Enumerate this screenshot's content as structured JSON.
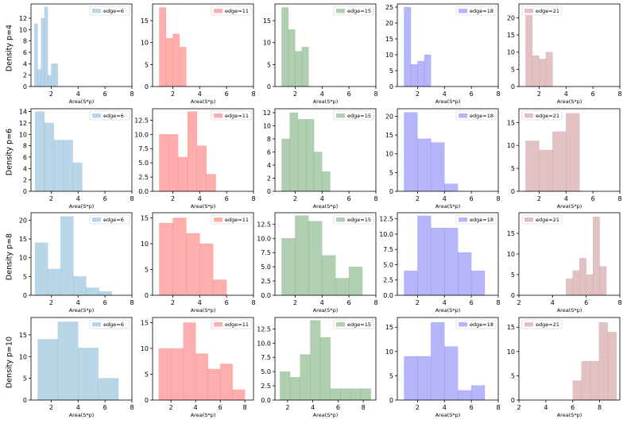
{
  "row_labels": [
    "Density p=4",
    "Density p=6",
    "Density p=8",
    "Density p=10"
  ],
  "column_titles": [
    "edge=6",
    "edge=11",
    "edge=15",
    "edge=18",
    "edge=21"
  ],
  "colors": [
    "#7fb2d6",
    "#ff6b6b",
    "#6fa86f",
    "#7878f5",
    "#c98e8e"
  ],
  "xlabel": "Area(S*p)",
  "chart_data": [
    {
      "type": "bar",
      "row": 0,
      "col": 0,
      "legend": "edge=6",
      "xlabel": "Area(S*p)",
      "xlim": [
        0.5,
        8
      ],
      "ylim": [
        0,
        14.5
      ],
      "xticks": [
        2,
        4,
        6,
        8
      ],
      "yticks": [
        0,
        2,
        4,
        6,
        8,
        10,
        12
      ],
      "ytick_labels": [
        "0",
        "2",
        "4",
        "6",
        "8",
        "10",
        "12"
      ],
      "bins": [
        [
          0.75,
          1.0,
          11
        ],
        [
          1.0,
          1.25,
          3
        ],
        [
          1.25,
          1.5,
          12
        ],
        [
          1.5,
          1.75,
          14
        ],
        [
          1.75,
          2.0,
          2
        ],
        [
          2.0,
          2.25,
          4
        ],
        [
          2.25,
          2.5,
          4
        ]
      ]
    },
    {
      "type": "bar",
      "row": 0,
      "col": 1,
      "legend": "edge=11",
      "xlabel": "Area(S*p)",
      "xlim": [
        0.5,
        8
      ],
      "ylim": [
        0,
        18.8
      ],
      "xticks": [
        2,
        4,
        6,
        8
      ],
      "yticks": [
        0,
        5,
        10,
        15
      ],
      "ytick_labels": [
        "0",
        "5",
        "10",
        "15"
      ],
      "bins": [
        [
          1.0,
          1.5,
          18
        ],
        [
          1.5,
          2.0,
          11
        ],
        [
          2.0,
          2.5,
          12
        ],
        [
          2.5,
          3.0,
          9
        ]
      ]
    },
    {
      "type": "bar",
      "row": 0,
      "col": 2,
      "legend": "edge=15",
      "xlabel": "Area(S*p)",
      "xlim": [
        0.5,
        8
      ],
      "ylim": [
        0,
        18.8
      ],
      "xticks": [
        2,
        4,
        6,
        8
      ],
      "yticks": [
        0,
        5,
        10,
        15
      ],
      "ytick_labels": [
        "0",
        "5",
        "10",
        "15"
      ],
      "bins": [
        [
          1.0,
          1.5,
          18
        ],
        [
          1.5,
          2.0,
          13
        ],
        [
          2.0,
          2.5,
          8
        ],
        [
          2.5,
          3.0,
          9
        ]
      ]
    },
    {
      "type": "bar",
      "row": 0,
      "col": 3,
      "legend": "edge=18",
      "xlabel": "Area(S*p)",
      "xlim": [
        0.5,
        8
      ],
      "ylim": [
        0,
        26
      ],
      "xticks": [
        2,
        4,
        6,
        8
      ],
      "yticks": [
        0,
        5,
        10,
        15,
        20,
        25
      ],
      "ytick_labels": [
        "0",
        "5",
        "10",
        "15",
        "20",
        "25"
      ],
      "bins": [
        [
          1.0,
          1.5,
          25
        ],
        [
          1.5,
          2.0,
          7
        ],
        [
          2.0,
          2.5,
          8
        ],
        [
          2.5,
          3.0,
          10
        ]
      ]
    },
    {
      "type": "bar",
      "row": 0,
      "col": 4,
      "legend": "edge=21",
      "xlabel": "Area(S*p)",
      "xlim": [
        0.5,
        8
      ],
      "ylim": [
        0,
        24
      ],
      "xticks": [
        2,
        4,
        6,
        8
      ],
      "yticks": [
        0,
        5,
        10,
        15,
        20
      ],
      "ytick_labels": [
        "0",
        "5",
        "10",
        "15",
        "20"
      ],
      "bins": [
        [
          1.0,
          1.5,
          23
        ],
        [
          1.5,
          2.0,
          9
        ],
        [
          2.0,
          2.5,
          8
        ],
        [
          2.5,
          3.0,
          10
        ]
      ]
    },
    {
      "type": "bar",
      "row": 1,
      "col": 0,
      "legend": "edge=6",
      "xlabel": "Area(S*p)",
      "xlim": [
        0.5,
        8
      ],
      "ylim": [
        0,
        14.5
      ],
      "xticks": [
        2,
        4,
        6,
        8
      ],
      "yticks": [
        0,
        2,
        4,
        6,
        8,
        10,
        12,
        14
      ],
      "ytick_labels": [
        "0",
        "2",
        "4",
        "6",
        "8",
        "10",
        "12",
        "14"
      ],
      "bins": [
        [
          0.8,
          1.5,
          14
        ],
        [
          1.5,
          2.2,
          12
        ],
        [
          2.2,
          2.9,
          9
        ],
        [
          2.9,
          3.6,
          9
        ],
        [
          3.6,
          4.3,
          5
        ]
      ]
    },
    {
      "type": "bar",
      "row": 1,
      "col": 1,
      "legend": "edge=11",
      "xlabel": "Area(S*p)",
      "xlim": [
        0.5,
        8
      ],
      "ylim": [
        0,
        14.5
      ],
      "xticks": [
        2,
        4,
        6,
        8
      ],
      "yticks": [
        0,
        2.5,
        5,
        7.5,
        10,
        12.5
      ],
      "ytick_labels": [
        "0.0",
        "2.5",
        "5.0",
        "7.5",
        "10.0",
        "12.5"
      ],
      "bins": [
        [
          1.0,
          1.7,
          10
        ],
        [
          1.7,
          2.4,
          10
        ],
        [
          2.4,
          3.1,
          6
        ],
        [
          3.1,
          3.8,
          14
        ],
        [
          3.8,
          4.5,
          8
        ],
        [
          4.5,
          5.2,
          3
        ]
      ]
    },
    {
      "type": "bar",
      "row": 1,
      "col": 2,
      "legend": "edge=15",
      "xlabel": "Area(S*p)",
      "xlim": [
        0.5,
        8
      ],
      "ylim": [
        0,
        12.6
      ],
      "xticks": [
        2,
        4,
        6,
        8
      ],
      "yticks": [
        0,
        2,
        4,
        6,
        8,
        10,
        12
      ],
      "ytick_labels": [
        "0",
        "2",
        "4",
        "6",
        "8",
        "10",
        "12"
      ],
      "bins": [
        [
          1.0,
          1.6,
          8
        ],
        [
          1.6,
          2.2,
          12
        ],
        [
          2.2,
          2.8,
          11
        ],
        [
          2.8,
          3.4,
          11
        ],
        [
          3.4,
          4.0,
          6
        ],
        [
          4.0,
          4.6,
          3
        ]
      ]
    },
    {
      "type": "bar",
      "row": 1,
      "col": 3,
      "legend": "edge=18",
      "xlabel": "Area(S*p)",
      "xlim": [
        0.5,
        8
      ],
      "ylim": [
        0,
        22
      ],
      "xticks": [
        2,
        4,
        6,
        8
      ],
      "yticks": [
        0,
        5,
        10,
        15,
        20
      ],
      "ytick_labels": [
        "0",
        "5",
        "10",
        "15",
        "20"
      ],
      "bins": [
        [
          1.0,
          2.0,
          21
        ],
        [
          2.0,
          3.0,
          14
        ],
        [
          3.0,
          4.0,
          13
        ],
        [
          4.0,
          5.0,
          2
        ]
      ]
    },
    {
      "type": "bar",
      "row": 1,
      "col": 4,
      "legend": "edge=21",
      "xlabel": "Area(S*p)",
      "xlim": [
        0.5,
        8
      ],
      "ylim": [
        0,
        18
      ],
      "xticks": [
        2,
        4,
        6,
        8
      ],
      "yticks": [
        0,
        5,
        10,
        15
      ],
      "ytick_labels": [
        "0",
        "5",
        "10",
        "15"
      ],
      "bins": [
        [
          1.0,
          2.0,
          11
        ],
        [
          2.0,
          3.0,
          9
        ],
        [
          3.0,
          4.0,
          13
        ],
        [
          4.0,
          5.0,
          17
        ]
      ]
    },
    {
      "type": "bar",
      "row": 2,
      "col": 0,
      "legend": "edge=6",
      "xlabel": "Area(S*p)",
      "xlim": [
        0.5,
        8
      ],
      "ylim": [
        0,
        22
      ],
      "xticks": [
        2,
        4,
        6,
        8
      ],
      "yticks": [
        0,
        5,
        10,
        15,
        20
      ],
      "ytick_labels": [
        "0",
        "5",
        "10",
        "15",
        "20"
      ],
      "bins": [
        [
          0.8,
          1.75,
          14
        ],
        [
          1.75,
          2.7,
          7
        ],
        [
          2.7,
          3.65,
          21
        ],
        [
          3.65,
          4.6,
          5
        ],
        [
          4.6,
          5.55,
          2
        ],
        [
          5.55,
          6.5,
          1
        ]
      ]
    },
    {
      "type": "bar",
      "row": 2,
      "col": 1,
      "legend": "edge=11",
      "xlabel": "Area(S*p)",
      "xlim": [
        0.5,
        8
      ],
      "ylim": [
        0,
        16
      ],
      "xticks": [
        2,
        4,
        6,
        8
      ],
      "yticks": [
        0,
        5,
        10,
        15
      ],
      "ytick_labels": [
        "0",
        "5",
        "10",
        "15"
      ],
      "bins": [
        [
          1.0,
          2.0,
          14
        ],
        [
          2.0,
          3.0,
          15
        ],
        [
          3.0,
          4.0,
          12
        ],
        [
          4.0,
          5.0,
          10
        ],
        [
          5.0,
          6.0,
          3
        ]
      ]
    },
    {
      "type": "bar",
      "row": 2,
      "col": 2,
      "legend": "edge=15",
      "xlabel": "Area(S*p)",
      "xlim": [
        0.5,
        8
      ],
      "ylim": [
        0,
        14.5
      ],
      "xticks": [
        2,
        4,
        6,
        8
      ],
      "yticks": [
        0,
        2.5,
        5,
        7.5,
        10,
        12.5
      ],
      "ytick_labels": [
        "0.0",
        "2.5",
        "5.0",
        "7.5",
        "10.0",
        "12.5"
      ],
      "bins": [
        [
          1.0,
          2.0,
          10
        ],
        [
          2.0,
          3.0,
          14
        ],
        [
          3.0,
          4.0,
          13
        ],
        [
          4.0,
          5.0,
          7
        ],
        [
          5.0,
          6.0,
          3
        ],
        [
          6.0,
          7.0,
          5
        ]
      ]
    },
    {
      "type": "bar",
      "row": 2,
      "col": 3,
      "legend": "edge=18",
      "xlabel": "Area(S*p)",
      "xlim": [
        0.5,
        8
      ],
      "ylim": [
        0,
        13.5
      ],
      "xticks": [
        2,
        4,
        6,
        8
      ],
      "yticks": [
        0,
        2.5,
        5,
        7.5,
        10,
        12.5
      ],
      "ytick_labels": [
        "0.0",
        "2.5",
        "5.0",
        "7.5",
        "10.0",
        "12.5"
      ],
      "bins": [
        [
          1.0,
          2.0,
          4
        ],
        [
          2.0,
          3.0,
          13
        ],
        [
          3.0,
          4.0,
          11
        ],
        [
          4.0,
          5.0,
          11
        ],
        [
          5.0,
          6.0,
          7
        ],
        [
          6.0,
          7.0,
          4
        ]
      ]
    },
    {
      "type": "bar",
      "row": 2,
      "col": 4,
      "legend": "edge=21",
      "xlabel": "Area(S*p)",
      "xlim": [
        2,
        8
      ],
      "ylim": [
        0,
        20
      ],
      "xticks": [
        2,
        4,
        6,
        8
      ],
      "yticks": [
        0,
        5,
        10,
        15
      ],
      "ytick_labels": [
        "0",
        "5",
        "10",
        "15"
      ],
      "bins": [
        [
          4.8,
          5.2,
          4
        ],
        [
          5.2,
          5.6,
          6
        ],
        [
          5.6,
          6.0,
          9
        ],
        [
          6.0,
          6.4,
          5
        ],
        [
          6.4,
          6.8,
          19
        ],
        [
          6.8,
          7.2,
          7
        ]
      ]
    },
    {
      "type": "bar",
      "row": 3,
      "col": 0,
      "legend": "edge=6",
      "xlabel": "Area(S*p)",
      "xlim": [
        0.5,
        8
      ],
      "ylim": [
        0,
        19
      ],
      "xticks": [
        2,
        4,
        6,
        8
      ],
      "yticks": [
        0,
        5,
        10,
        15
      ],
      "ytick_labels": [
        "0",
        "5",
        "10",
        "15"
      ],
      "bins": [
        [
          1.0,
          2.5,
          14
        ],
        [
          2.5,
          4.0,
          18
        ],
        [
          4.0,
          5.5,
          12
        ],
        [
          5.5,
          7.0,
          5
        ]
      ]
    },
    {
      "type": "bar",
      "row": 3,
      "col": 1,
      "legend": "edge=11",
      "xlabel": "Area(S*p)",
      "xlim": [
        0.5,
        8.7
      ],
      "ylim": [
        0,
        16
      ],
      "xticks": [
        2,
        4,
        6,
        8
      ],
      "yticks": [
        0,
        5,
        10,
        15
      ],
      "ytick_labels": [
        "0",
        "5",
        "10",
        "15"
      ],
      "bins": [
        [
          1.0,
          2.0,
          10
        ],
        [
          2.0,
          3.0,
          10
        ],
        [
          3.0,
          4.0,
          15
        ],
        [
          4.0,
          5.0,
          9
        ],
        [
          5.0,
          6.0,
          6
        ],
        [
          6.0,
          7.0,
          7
        ],
        [
          7.0,
          8.0,
          2
        ]
      ]
    },
    {
      "type": "bar",
      "row": 3,
      "col": 2,
      "legend": "edge=15",
      "xlabel": "Area(S*p)",
      "xlim": [
        1,
        9
      ],
      "ylim": [
        0,
        14.5
      ],
      "xticks": [
        2,
        4,
        6,
        8
      ],
      "yticks": [
        0,
        2.5,
        5,
        7.5,
        10,
        12.5
      ],
      "ytick_labels": [
        "0.0",
        "2.5",
        "5.0",
        "7.5",
        "10.0",
        "12.5"
      ],
      "bins": [
        [
          1.4,
          2.2,
          5
        ],
        [
          2.2,
          3.0,
          4
        ],
        [
          3.0,
          3.8,
          8
        ],
        [
          3.8,
          4.6,
          14
        ],
        [
          4.6,
          5.4,
          11
        ],
        [
          5.4,
          6.2,
          2
        ],
        [
          6.2,
          7.0,
          2
        ],
        [
          7.0,
          7.8,
          2
        ],
        [
          7.8,
          8.6,
          2
        ]
      ]
    },
    {
      "type": "bar",
      "row": 3,
      "col": 3,
      "legend": "edge=18",
      "xlabel": "Area(S*p)",
      "xlim": [
        0.5,
        8
      ],
      "ylim": [
        0,
        17
      ],
      "xticks": [
        2,
        4,
        6,
        8
      ],
      "yticks": [
        0,
        5,
        10,
        15
      ],
      "ytick_labels": [
        "0",
        "5",
        "10",
        "15"
      ],
      "bins": [
        [
          1.0,
          2.0,
          9
        ],
        [
          2.0,
          3.0,
          9
        ],
        [
          3.0,
          4.0,
          16
        ],
        [
          4.0,
          5.0,
          11
        ],
        [
          5.0,
          6.0,
          2
        ],
        [
          6.0,
          7.0,
          3
        ]
      ]
    },
    {
      "type": "bar",
      "row": 3,
      "col": 4,
      "legend": "edge=21",
      "xlabel": "Area(S*p)",
      "xlim": [
        2,
        9.5
      ],
      "ylim": [
        0,
        17
      ],
      "xticks": [
        2,
        4,
        6,
        8
      ],
      "yticks": [
        0,
        5,
        10,
        15
      ],
      "ytick_labels": [
        "0",
        "5",
        "10",
        "15"
      ],
      "bins": [
        [
          6.0,
          6.65,
          4
        ],
        [
          6.65,
          7.3,
          8
        ],
        [
          7.3,
          7.95,
          8
        ],
        [
          7.95,
          8.6,
          16
        ],
        [
          8.6,
          9.25,
          14
        ]
      ]
    }
  ]
}
